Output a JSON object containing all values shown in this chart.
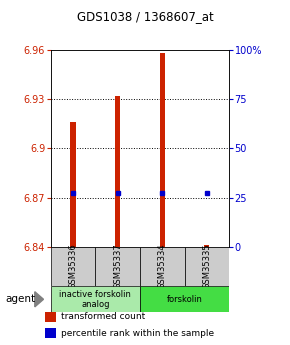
{
  "title": "GDS1038 / 1368607_at",
  "samples": [
    "GSM35336",
    "GSM35337",
    "GSM35334",
    "GSM35335"
  ],
  "red_values": [
    6.916,
    6.932,
    6.958,
    6.841
  ],
  "blue_values": [
    6.873,
    6.873,
    6.873,
    6.873
  ],
  "ylim": [
    6.84,
    6.96
  ],
  "yticks_left": [
    6.84,
    6.87,
    6.9,
    6.93,
    6.96
  ],
  "ytick_labels_left": [
    "6.84",
    "6.87",
    "6.9",
    "6.93",
    "6.96"
  ],
  "yticks_right_pct": [
    0,
    25,
    50,
    75,
    100
  ],
  "ytick_labels_right": [
    "0",
    "25",
    "50",
    "75",
    "100%"
  ],
  "groups": [
    {
      "label": "inactive forskolin\nanalog",
      "color": "#aaeaaa",
      "samples": [
        0,
        1
      ]
    },
    {
      "label": "forskolin",
      "color": "#44dd44",
      "samples": [
        2,
        3
      ]
    }
  ],
  "agent_label": "agent",
  "legend_items": [
    {
      "label": "transformed count",
      "color": "#cc2200"
    },
    {
      "label": "percentile rank within the sample",
      "color": "#0000cc"
    }
  ],
  "bar_color": "#cc2200",
  "dot_color": "#0000cc",
  "left_tick_color": "#cc2200",
  "right_tick_color": "#0000cc",
  "sample_box_color": "#cccccc",
  "bar_width": 0.12
}
